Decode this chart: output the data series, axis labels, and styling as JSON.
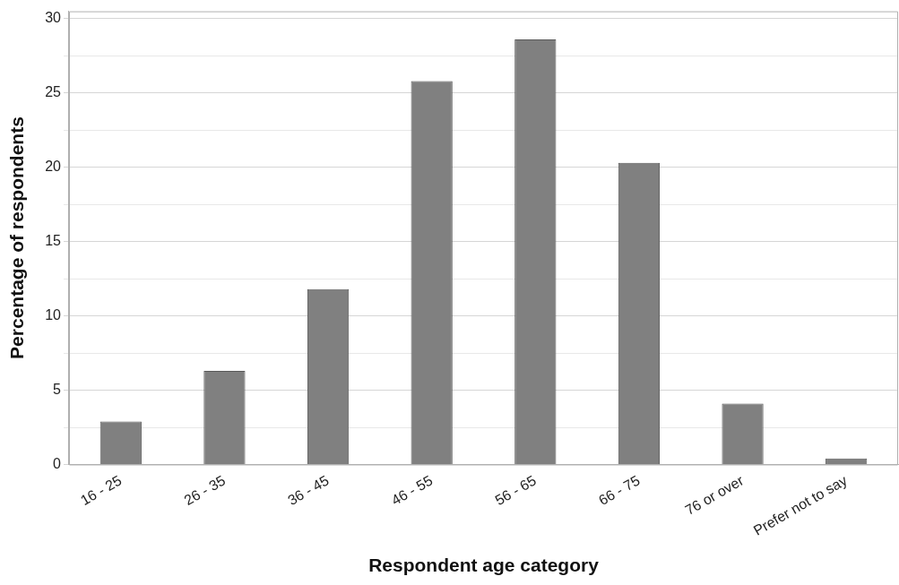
{
  "chart_data": {
    "type": "bar",
    "xlabel": "Respondent age category",
    "ylabel": "Percentage of respondents",
    "categories": [
      "16 - 25",
      "26 - 35",
      "36 - 45",
      "46 - 55",
      "56 - 65",
      "66 - 75",
      "76 or over",
      "Prefer not to say"
    ],
    "values": [
      2.9,
      6.3,
      11.8,
      25.8,
      28.6,
      20.3,
      4.1,
      0.4
    ],
    "color": "#808080",
    "ylim": [
      0,
      30.5
    ],
    "yticks": [
      0,
      {
        "value": 2.5,
        "label": null
      },
      5,
      {
        "value": 7.5,
        "label": null
      },
      10,
      {
        "value": 12.5,
        "label": null
      },
      15,
      {
        "value": 17.5,
        "label": null
      },
      20,
      {
        "value": 22.5,
        "label": null
      },
      25,
      {
        "value": 27.5,
        "label": null
      },
      30
    ],
    "grid": "y",
    "legend": false
  }
}
